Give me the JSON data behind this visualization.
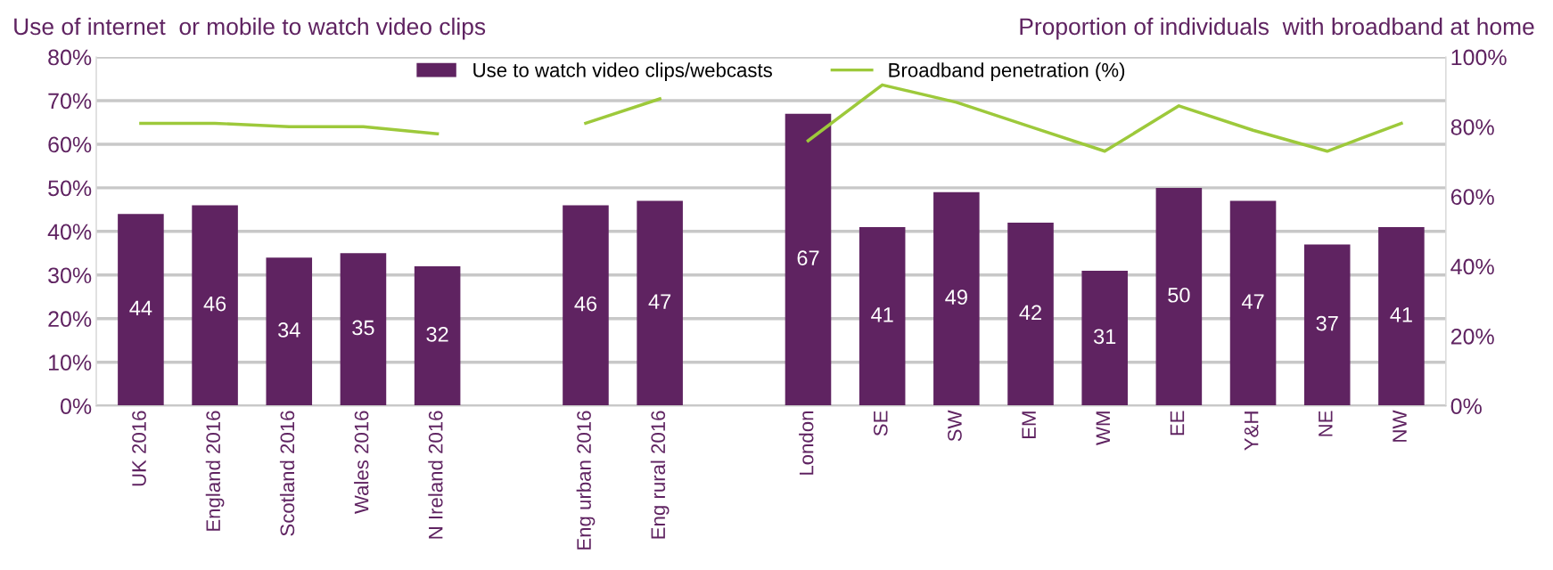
{
  "chart_data": {
    "type": "bar",
    "ylabel": "Use of internet  or mobile to watch video clips",
    "y2label": "Proportion of individuals  with broadband at home",
    "categories": [
      "UK 2016",
      "England 2016",
      "Scotland 2016",
      "Wales 2016",
      "N Ireland 2016",
      null,
      "Eng urban 2016",
      "Eng rural 2016",
      null,
      "London",
      "SE",
      "SW",
      "EM",
      "WM",
      "EE",
      "Y&H",
      "NE",
      "NW"
    ],
    "series": [
      {
        "name": "Use to watch video clips/webcasts",
        "color": "#5f2361",
        "values": [
          44,
          46,
          34,
          35,
          32,
          null,
          46,
          47,
          null,
          67,
          41,
          49,
          42,
          31,
          50,
          47,
          37,
          41
        ],
        "value_labels": [
          "44",
          "46",
          "34",
          "35",
          "32",
          null,
          "46",
          "47",
          null,
          "67",
          "41",
          "49",
          "42",
          "31",
          "50",
          "47",
          "37",
          "41"
        ]
      },
      {
        "name": "Broadband penetration (%)",
        "type": "line",
        "axis": "y2",
        "color": "#9dc93b",
        "values": [
          81,
          81,
          80,
          80,
          78,
          null,
          81,
          88,
          null,
          76,
          92,
          87,
          80,
          73,
          86,
          79,
          73,
          81
        ]
      }
    ],
    "ylim": [
      0,
      80
    ],
    "yticks": [
      {
        "value": 0,
        "label": "0%"
      },
      {
        "value": 10,
        "label": "10%"
      },
      {
        "value": 20,
        "label": "20%"
      },
      {
        "value": 30,
        "label": "30%"
      },
      {
        "value": 40,
        "label": "40%"
      },
      {
        "value": 50,
        "label": "50%"
      },
      {
        "value": 60,
        "label": "60%"
      },
      {
        "value": 70,
        "label": "70%"
      },
      {
        "value": 80,
        "label": "80%"
      }
    ],
    "y2lim": [
      0,
      100
    ],
    "y2ticks": [
      {
        "value": 0,
        "label": "0%"
      },
      {
        "value": 20,
        "label": "20%"
      },
      {
        "value": 40,
        "label": "40%"
      },
      {
        "value": 60,
        "label": "60%"
      },
      {
        "value": 80,
        "label": "80%"
      },
      {
        "value": 100,
        "label": "100%"
      }
    ],
    "grid": "y",
    "legend": "top",
    "marker": "none",
    "line_style": "solid"
  }
}
